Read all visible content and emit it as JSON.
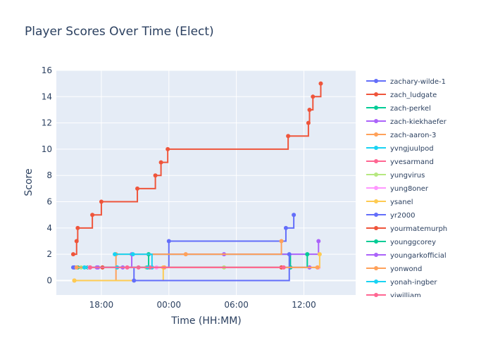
{
  "chart_data": {
    "type": "line",
    "title": "Player Scores Over Time (Elect)",
    "xlabel": "Time (HH:MM)",
    "ylabel": "Score",
    "x_ticks": [
      "18:00",
      "00:00",
      "06:00",
      "12:00"
    ],
    "x_tick_hours": [
      18,
      24,
      30,
      36
    ],
    "xlim": [
      14.0,
      40.6
    ],
    "ylim": [
      -1.1,
      16
    ],
    "y_ticks": [
      0,
      2,
      4,
      6,
      8,
      10,
      12,
      14,
      16
    ],
    "grid": true,
    "line_shape": "step",
    "legend_position": "right",
    "series": [
      {
        "name": "zachary-wilde-1",
        "color": "#636efa",
        "x": [
          15.5,
          24.0,
          34.4,
          35.1
        ],
        "y": [
          1,
          3,
          4,
          5
        ]
      },
      {
        "name": "zach_ludgate",
        "color": "#ef553b",
        "x": [
          15.5,
          15.8,
          15.9,
          17.2,
          18.0,
          21.2,
          22.8,
          23.3,
          23.9,
          34.6,
          36.4,
          36.5,
          36.8,
          37.5
        ],
        "y": [
          2,
          3,
          4,
          5,
          6,
          7,
          8,
          9,
          10,
          11,
          12,
          13,
          14,
          15
        ]
      },
      {
        "name": "zach-perkel",
        "color": "#00cc96",
        "x": [
          16.8,
          22.2,
          34.8
        ],
        "y": [
          1,
          2,
          1
        ]
      },
      {
        "name": "zach-kiekhaefer",
        "color": "#ab63fa",
        "x": [
          17.7,
          20.7,
          28.9,
          37.3
        ],
        "y": [
          1,
          2,
          2,
          3
        ]
      },
      {
        "name": "zach-aaron-3",
        "color": "#ffa15a",
        "x": [
          15.6,
          19.3,
          25.5,
          34.0
        ],
        "y": [
          0,
          2,
          2,
          3
        ]
      },
      {
        "name": "yvngjuulpod",
        "color": "#19d3f3",
        "x": [
          19.2,
          20.8,
          22.5
        ],
        "y": [
          2,
          2,
          1
        ]
      },
      {
        "name": "yvesarmand",
        "color": "#ff6692",
        "x": [
          17.0,
          21.3,
          22.3
        ],
        "y": [
          1,
          1,
          1
        ]
      },
      {
        "name": "yungvirus",
        "color": "#b6e880",
        "x": [
          16.2,
          22.0,
          28.9
        ],
        "y": [
          1,
          1,
          1
        ]
      },
      {
        "name": "yung8oner",
        "color": "#ff97ff",
        "x": [
          16.9,
          22.9,
          37.3
        ],
        "y": [
          1,
          1,
          1
        ]
      },
      {
        "name": "ysanel",
        "color": "#fecb52",
        "x": [
          15.6,
          23.5,
          37.4
        ],
        "y": [
          0,
          1,
          2
        ]
      },
      {
        "name": "yr2000",
        "color": "#636efa",
        "x": [
          15.6,
          20.9,
          34.7
        ],
        "y": [
          1,
          0,
          2
        ]
      },
      {
        "name": "yourmatemurph",
        "color": "#ef553b",
        "x": [
          18.1,
          34.0
        ],
        "y": [
          1,
          1
        ]
      },
      {
        "name": "younggcorey",
        "color": "#00cc96",
        "x": [
          15.9,
          22.1,
          36.3
        ],
        "y": [
          1,
          1,
          2
        ]
      },
      {
        "name": "youngarkofficial",
        "color": "#ab63fa",
        "x": [
          17.6,
          19.9,
          36.5
        ],
        "y": [
          1,
          1,
          1
        ]
      },
      {
        "name": "yonwond",
        "color": "#ffa15a",
        "x": [
          15.8,
          23.6,
          37.2
        ],
        "y": [
          1,
          1,
          1
        ]
      },
      {
        "name": "yonah-ingber",
        "color": "#19d3f3",
        "x": [
          16.5,
          19.4,
          22.1
        ],
        "y": [
          1,
          1,
          1
        ]
      },
      {
        "name": "yiwilliam",
        "color": "#ff6692",
        "x": [
          17.0,
          20.3,
          34.2
        ],
        "y": [
          1,
          1,
          1
        ]
      }
    ]
  }
}
